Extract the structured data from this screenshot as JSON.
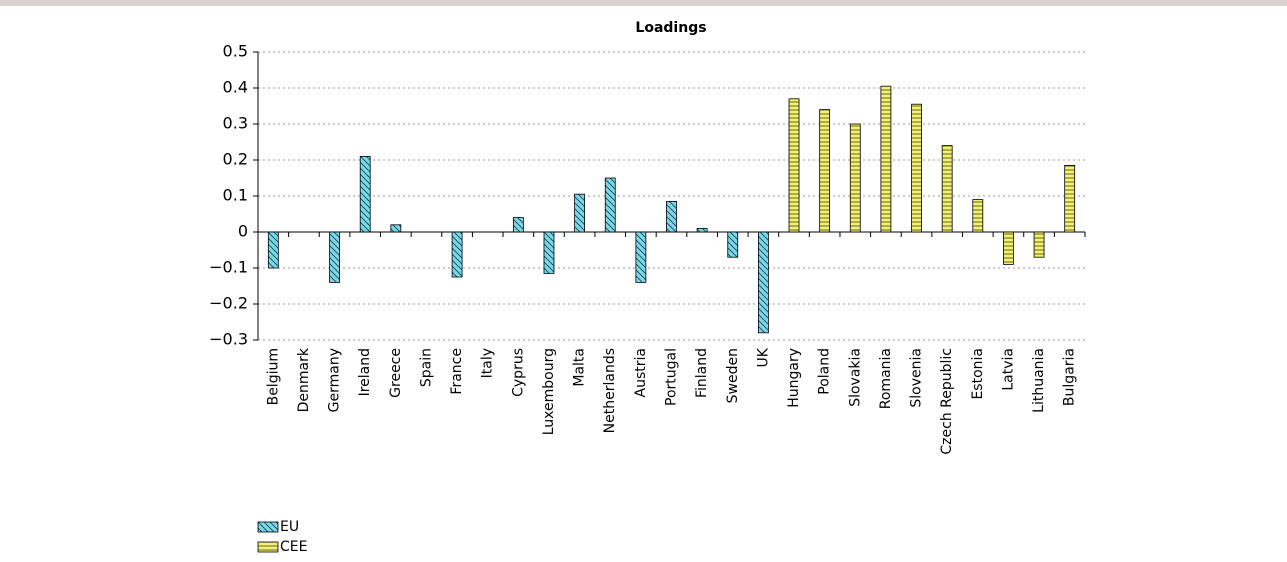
{
  "chart_data": {
    "type": "bar",
    "title": "Loadings",
    "categories": [
      "Belgium",
      "Denmark",
      "Germany",
      "Ireland",
      "Greece",
      "Spain",
      "France",
      "Italy",
      "Cyprus",
      "Luxembourg",
      "Malta",
      "Netherlands",
      "Austria",
      "Portugal",
      "Finland",
      "Sweden",
      "UK",
      "Hungary",
      "Poland",
      "Slovakia",
      "Romania",
      "Slovenia",
      "Czech Republic",
      "Estonia",
      "Latvia",
      "Lithuania",
      "Bulgaria"
    ],
    "series": [
      {
        "name": "EU",
        "color": "#7fd8e8",
        "values": [
          -0.1,
          0,
          -0.14,
          0.21,
          0.02,
          0,
          -0.125,
          0,
          0.04,
          -0.115,
          0.105,
          0.15,
          -0.14,
          0.085,
          0.01,
          -0.07,
          -0.28,
          null,
          null,
          null,
          null,
          null,
          null,
          null,
          null,
          null,
          null
        ]
      },
      {
        "name": "CEE",
        "color": "#f2f07a",
        "values": [
          null,
          null,
          null,
          null,
          null,
          null,
          null,
          null,
          null,
          null,
          null,
          null,
          null,
          null,
          null,
          null,
          null,
          0.37,
          0.34,
          0.3,
          0.405,
          0.355,
          0.24,
          0.09,
          -0.09,
          -0.07,
          0.185
        ]
      }
    ],
    "ylim": [
      -0.3,
      0.5
    ],
    "yticks": [
      {
        "value": -0.3,
        "label": "−0.3"
      },
      {
        "value": -0.2,
        "label": "−0.2"
      },
      {
        "value": -0.1,
        "label": "−0.1"
      },
      0,
      0.1,
      0.2,
      0.3,
      0.4,
      0.5
    ],
    "grid": true
  }
}
